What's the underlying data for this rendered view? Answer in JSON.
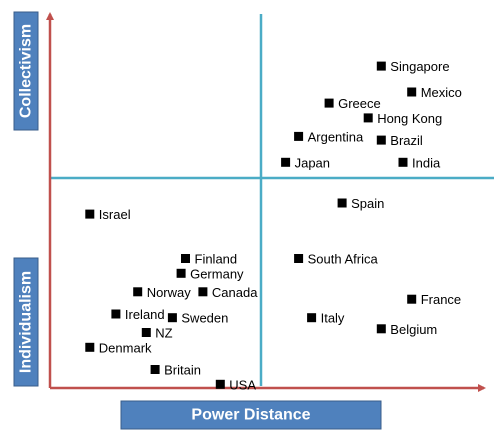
{
  "chart_data": {
    "type": "scatter",
    "xlabel": "Power Distance",
    "ylabel_top": "Collectivism",
    "ylabel_bottom": "Individualism",
    "xlim": [
      0,
      100
    ],
    "ylim": [
      0,
      100
    ],
    "grid": false,
    "points": [
      {
        "label": "Singapore",
        "x": 75,
        "y": 87
      },
      {
        "label": "Mexico",
        "x": 82,
        "y": 80
      },
      {
        "label": "Greece",
        "x": 63,
        "y": 77
      },
      {
        "label": "Hong Kong",
        "x": 72,
        "y": 73
      },
      {
        "label": "Argentina",
        "x": 56,
        "y": 68
      },
      {
        "label": "Brazil",
        "x": 75,
        "y": 67
      },
      {
        "label": "Japan",
        "x": 53,
        "y": 61
      },
      {
        "label": "India",
        "x": 80,
        "y": 61
      },
      {
        "label": "Israel",
        "x": 8,
        "y": 47
      },
      {
        "label": "Spain",
        "x": 66,
        "y": 50
      },
      {
        "label": "Finland",
        "x": 30,
        "y": 35
      },
      {
        "label": "Germany",
        "x": 29,
        "y": 31
      },
      {
        "label": "South Africa",
        "x": 56,
        "y": 35
      },
      {
        "label": "Canada",
        "x": 34,
        "y": 26
      },
      {
        "label": "Norway",
        "x": 19,
        "y": 26
      },
      {
        "label": "Ireland",
        "x": 14,
        "y": 20
      },
      {
        "label": "Sweden",
        "x": 27,
        "y": 19
      },
      {
        "label": "NZ",
        "x": 21,
        "y": 15
      },
      {
        "label": "France",
        "x": 82,
        "y": 24
      },
      {
        "label": "Italy",
        "x": 59,
        "y": 19
      },
      {
        "label": "Belgium",
        "x": 75,
        "y": 16
      },
      {
        "label": "Denmark",
        "x": 8,
        "y": 11
      },
      {
        "label": "Britain",
        "x": 23,
        "y": 5
      },
      {
        "label": "USA",
        "x": 38,
        "y": 1
      }
    ]
  },
  "colors": {
    "axis": "#c0504d",
    "divider": "#4bacc6",
    "title_box": "#4f81bd",
    "title_box_border": "#385d8a",
    "marker": "#000000"
  }
}
